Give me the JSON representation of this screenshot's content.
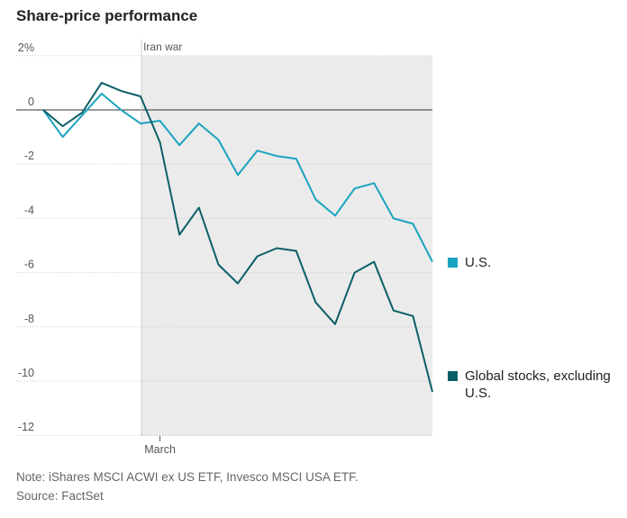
{
  "title": "Share-price performance",
  "annotation": "Iran war",
  "note": "Note: iShares MSCI ACWI ex US ETF, Invesco MSCI USA ETF.",
  "source": "Source: FactSet",
  "colors": {
    "us": "#1aa3bf",
    "global": "#0b5f66",
    "shade": "#ebebeb"
  },
  "chart_data": {
    "type": "line",
    "title": "Share-price performance",
    "ylim": [
      -12,
      2
    ],
    "yticks": [
      2,
      0,
      -2,
      -4,
      -6,
      -8,
      -10,
      -12
    ],
    "ytick_labels": [
      "2%",
      "0",
      "-2",
      "-4",
      "-6",
      "-8",
      "-10",
      "-12"
    ],
    "x": [
      0,
      1,
      2,
      3,
      4,
      5,
      6,
      7,
      8,
      9,
      10,
      11,
      12,
      13,
      14,
      15,
      16,
      17,
      18,
      19,
      20
    ],
    "xtick_label": "March",
    "shaded_label": "Iran war",
    "grid": "horizontal",
    "legend": "right",
    "series": [
      {
        "name": "U.S.",
        "values": [
          0,
          -1.0,
          -0.2,
          0.6,
          0.0,
          -0.5,
          -0.4,
          -1.3,
          -0.5,
          -1.1,
          -2.4,
          -1.5,
          -1.7,
          -1.8,
          -3.3,
          -3.9,
          -2.9,
          -2.7,
          -4.0,
          -4.2,
          -5.6
        ]
      },
      {
        "name": "Global stocks, excluding U.S.",
        "values": [
          0,
          -0.6,
          -0.1,
          1.0,
          0.7,
          0.5,
          -1.2,
          -4.6,
          -3.6,
          -5.7,
          -6.4,
          -5.4,
          -5.1,
          -5.2,
          -7.1,
          -7.9,
          -6.0,
          -5.6,
          -7.4,
          -7.6,
          -10.4
        ]
      }
    ]
  }
}
